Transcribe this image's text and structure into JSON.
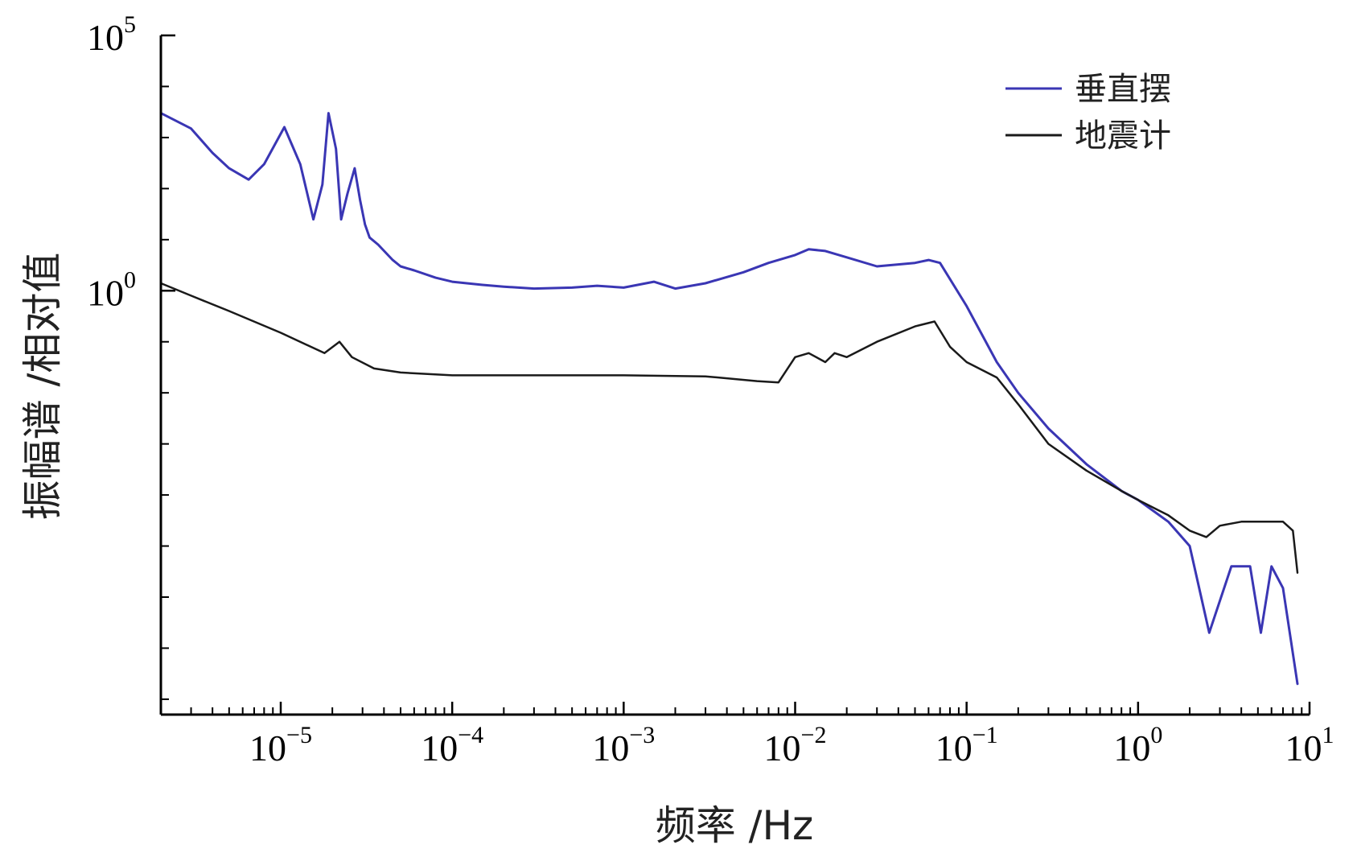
{
  "chart_data": {
    "type": "line",
    "xscale": "log",
    "yscale": "log",
    "xlim": [
      2e-06,
      10
    ],
    "ylim": [
      5e-09,
      100000
    ],
    "xlabel": "频率 /Hz",
    "ylabel": "振幅谱 /相对值",
    "x_ticks": [
      {
        "base": "10",
        "exp": "−5",
        "value": 1e-05
      },
      {
        "base": "10",
        "exp": "−4",
        "value": 0.0001
      },
      {
        "base": "10",
        "exp": "−3",
        "value": 0.001
      },
      {
        "base": "10",
        "exp": "−2",
        "value": 0.01
      },
      {
        "base": "10",
        "exp": "−1",
        "value": 0.1
      },
      {
        "base": "10",
        "exp": "0",
        "value": 1
      },
      {
        "base": "10",
        "exp": "1",
        "value": 10
      }
    ],
    "y_ticks": [
      {
        "base": "10",
        "exp": "5",
        "value": 100000
      },
      {
        "base": "10",
        "exp": "0",
        "value": 1
      }
    ],
    "legend_position": "top-right",
    "series": [
      {
        "name": "垂直摆",
        "color": "#3a36b4",
        "x": [
          2e-06,
          3e-06,
          4e-06,
          5e-06,
          6.5e-06,
          8e-06,
          1.05e-05,
          1.3e-05,
          1.55e-05,
          1.75e-05,
          1.9e-05,
          2.1e-05,
          2.25e-05,
          2.45e-05,
          2.7e-05,
          2.9e-05,
          3.1e-05,
          3.3e-05,
          3.7e-05,
          4.5e-05,
          5e-05,
          6e-05,
          8e-05,
          0.0001,
          0.00015,
          0.0002,
          0.0003,
          0.0005,
          0.0007,
          0.001,
          0.0015,
          0.002,
          0.003,
          0.005,
          0.007,
          0.01,
          0.012,
          0.015,
          0.02,
          0.03,
          0.05,
          0.06,
          0.07,
          0.1,
          0.15,
          0.2,
          0.3,
          0.5,
          0.8,
          1,
          1.5,
          2,
          2.6,
          3.5,
          4.5,
          5.2,
          6,
          7,
          8.5
        ],
        "y": [
          3000,
          1500,
          500,
          250,
          150,
          300,
          1600,
          300,
          25,
          120,
          3000,
          600,
          25,
          80,
          250,
          60,
          20,
          11,
          8,
          4,
          3,
          2.5,
          1.8,
          1.5,
          1.3,
          1.2,
          1.1,
          1.15,
          1.25,
          1.15,
          1.5,
          1.1,
          1.4,
          2.3,
          3.5,
          5,
          6.5,
          6,
          4.5,
          3,
          3.5,
          4,
          3.5,
          0.5,
          0.04,
          0.01,
          0.002,
          0.0004,
          0.00012,
          8e-05,
          3e-05,
          1e-05,
          2e-07,
          4e-06,
          4e-06,
          2e-07,
          4e-06,
          1.5e-06,
          2e-08
        ]
      },
      {
        "name": "地震计",
        "color": "#1a1a1a",
        "x": [
          2e-06,
          3e-06,
          5e-06,
          1e-05,
          1.8e-05,
          2.2e-05,
          2.6e-05,
          3.5e-05,
          5e-05,
          0.0001,
          0.0003,
          0.001,
          0.003,
          0.006,
          0.008,
          0.01,
          0.012,
          0.015,
          0.017,
          0.02,
          0.03,
          0.05,
          0.065,
          0.08,
          0.1,
          0.15,
          0.2,
          0.3,
          0.5,
          0.8,
          1,
          1.5,
          2,
          2.5,
          3,
          4,
          5,
          6,
          7,
          8,
          8.5
        ],
        "y": [
          1.4,
          0.8,
          0.4,
          0.15,
          0.06,
          0.1,
          0.05,
          0.03,
          0.025,
          0.022,
          0.022,
          0.022,
          0.021,
          0.017,
          0.016,
          0.05,
          0.06,
          0.04,
          0.06,
          0.05,
          0.1,
          0.2,
          0.25,
          0.08,
          0.04,
          0.02,
          0.006,
          0.001,
          0.0003,
          0.00012,
          8e-05,
          4e-05,
          2e-05,
          1.5e-05,
          2.5e-05,
          3e-05,
          3e-05,
          3e-05,
          3e-05,
          2e-05,
          3e-06
        ]
      }
    ]
  }
}
